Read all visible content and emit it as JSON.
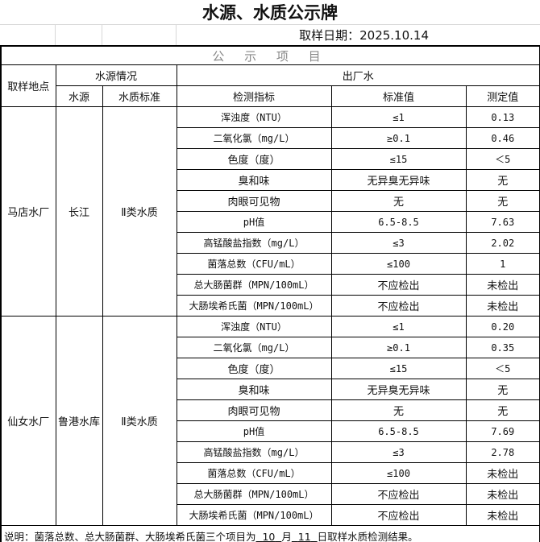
{
  "title": "水源、水质公示牌",
  "date_label": "取样日期：2025.10.14",
  "section": "公 示 项 目",
  "headers": {
    "site": "取样地点",
    "source_info": "水源情况",
    "outlet": "出厂水",
    "source": "水源",
    "standard_class": "水质标准",
    "indicator": "检测指标",
    "standard": "标准值",
    "measured": "测定值"
  },
  "sites": [
    {
      "name": "马店水厂",
      "source": "长江",
      "class": "Ⅱ类水质",
      "rows": [
        [
          "浑浊度（NTU）",
          "≤1",
          "0.13"
        ],
        [
          "二氧化氯（mg/L）",
          "≥0.1",
          "0.46"
        ],
        [
          "色度（度）",
          "≤15",
          "＜5"
        ],
        [
          "臭和味",
          "无异臭无异味",
          "无"
        ],
        [
          "肉眼可见物",
          "无",
          "无"
        ],
        [
          "pH值",
          "6.5-8.5",
          "7.63"
        ],
        [
          "高锰酸盐指数（mg/L）",
          "≤3",
          "2.02"
        ],
        [
          "菌落总数（CFU/mL）",
          "≤100",
          "1"
        ],
        [
          "总大肠菌群（MPN/100mL）",
          "不应检出",
          "未检出"
        ],
        [
          "大肠埃希氏菌（MPN/100mL）",
          "不应检出",
          "未检出"
        ]
      ]
    },
    {
      "name": "仙女水厂",
      "source": "鲁港水库",
      "class": "Ⅱ类水质",
      "rows": [
        [
          "浑浊度（NTU）",
          "≤1",
          "0.20"
        ],
        [
          "二氧化氯（mg/L）",
          "≥0.1",
          "0.35"
        ],
        [
          "色度（度）",
          "≤15",
          "＜5"
        ],
        [
          "臭和味",
          "无异臭无异味",
          "无"
        ],
        [
          "肉眼可见物",
          "无",
          "无"
        ],
        [
          "pH值",
          "6.5-8.5",
          "7.69"
        ],
        [
          "高锰酸盐指数（mg/L）",
          "≤3",
          "2.78"
        ],
        [
          "菌落总数（CFU/mL）",
          "≤100",
          "未检出"
        ],
        [
          "总大肠菌群（MPN/100mL）",
          "不应检出",
          "未检出"
        ],
        [
          "大肠埃希氏菌（MPN/100mL）",
          "不应检出",
          "未检出"
        ]
      ]
    }
  ],
  "note": {
    "prefix": "说明：菌落总数、总大肠菌群、大肠埃希氏菌三个项目为",
    "month": "10",
    "month_label": "月",
    "day": "11",
    "suffix": "日取样水质检测结果。"
  }
}
